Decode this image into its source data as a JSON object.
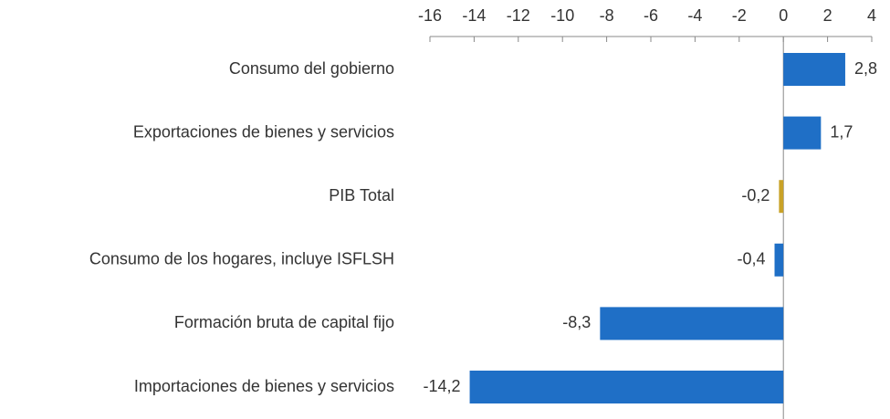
{
  "chart_data": {
    "type": "bar",
    "orientation": "horizontal",
    "categories": [
      "Consumo del gobierno",
      "Exportaciones de bienes y servicios",
      "PIB Total",
      "Consumo de los hogares, incluye ISFLSH",
      "Formación bruta de capital fijo",
      "Importaciones de bienes y servicios"
    ],
    "values": [
      2.8,
      1.7,
      -0.2,
      -0.4,
      -8.3,
      -14.2
    ],
    "value_labels": [
      "2,8",
      "1,7",
      "-0,2",
      "-0,4",
      "-8,3",
      "-14,2"
    ],
    "colors": [
      "#1f6fc6",
      "#1f6fc6",
      "#c9a227",
      "#1f6fc6",
      "#1f6fc6",
      "#1f6fc6"
    ],
    "xlim": [
      -16,
      4
    ],
    "xticks": [
      -16,
      -14,
      -12,
      -10,
      -8,
      -6,
      -4,
      -2,
      0,
      2,
      4
    ]
  }
}
